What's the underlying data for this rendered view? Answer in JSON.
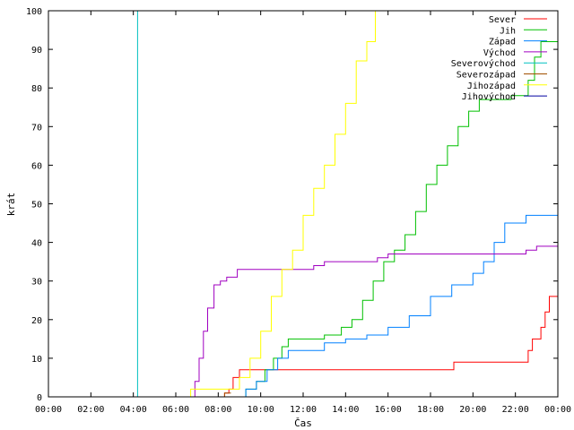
{
  "chart_data": {
    "type": "line",
    "title": "",
    "xlabel": "Čas",
    "ylabel": "krát",
    "xlim": [
      0,
      24
    ],
    "ylim": [
      0,
      100
    ],
    "grid": false,
    "legend_position": "top-right",
    "x_ticks": [
      {
        "value": 0,
        "label": "00:00"
      },
      {
        "value": 2,
        "label": "02:00"
      },
      {
        "value": 4,
        "label": "04:00"
      },
      {
        "value": 6,
        "label": "06:00"
      },
      {
        "value": 8,
        "label": "08:00"
      },
      {
        "value": 10,
        "label": "10:00"
      },
      {
        "value": 12,
        "label": "12:00"
      },
      {
        "value": 14,
        "label": "14:00"
      },
      {
        "value": 16,
        "label": "16:00"
      },
      {
        "value": 18,
        "label": "18:00"
      },
      {
        "value": 20,
        "label": "20:00"
      },
      {
        "value": 22,
        "label": "22:00"
      },
      {
        "value": 24,
        "label": "00:00"
      }
    ],
    "y_ticks": [
      0,
      10,
      20,
      30,
      40,
      50,
      60,
      70,
      80,
      90,
      100
    ],
    "series": [
      {
        "name": "Sever",
        "color": "#ff0000",
        "x": [
          0,
          8.1,
          8.3,
          8.5,
          8.7,
          9.0,
          10.5,
          13.0,
          16.0,
          19.0,
          19.1,
          20.0,
          22.5,
          22.6,
          22.8,
          23.0,
          23.2,
          23.4,
          23.6,
          23.8,
          24.0
        ],
        "y": [
          0,
          0,
          1,
          2,
          5,
          7,
          7,
          7,
          7,
          7,
          9,
          9,
          9,
          12,
          15,
          15,
          18,
          22,
          26,
          26,
          26
        ]
      },
      {
        "name": "Jih",
        "color": "#00c000",
        "x": [
          0,
          8.5,
          9.3,
          9.8,
          10.2,
          10.6,
          11.0,
          11.3,
          12.0,
          13.0,
          13.8,
          14.3,
          14.8,
          15.3,
          15.8,
          16.3,
          16.8,
          17.3,
          17.8,
          18.3,
          18.8,
          19.3,
          19.8,
          20.3,
          20.8,
          21.3,
          21.8,
          22.3,
          22.6,
          22.9,
          23.2,
          23.6,
          24.0
        ],
        "y": [
          0,
          0,
          2,
          4,
          7,
          10,
          13,
          15,
          15,
          16,
          18,
          20,
          25,
          30,
          35,
          38,
          42,
          48,
          55,
          60,
          65,
          70,
          74,
          77,
          77,
          77,
          78,
          78,
          82,
          88,
          92,
          92,
          92
        ]
      },
      {
        "name": "Západ",
        "color": "#0080ff",
        "x": [
          0,
          8.8,
          9.3,
          9.8,
          10.3,
          10.8,
          11.3,
          12.0,
          13.0,
          14.0,
          15.0,
          16.0,
          17.0,
          18.0,
          19.0,
          20.0,
          20.5,
          21.0,
          21.5,
          22.0,
          22.5,
          23.0,
          23.5,
          24.0
        ],
        "y": [
          0,
          0,
          2,
          4,
          7,
          10,
          12,
          12,
          14,
          15,
          16,
          18,
          21,
          26,
          29,
          32,
          35,
          40,
          45,
          45,
          47,
          47,
          47,
          51
        ]
      },
      {
        "name": "Východ",
        "color": "#a000c0",
        "x": [
          0,
          6.7,
          6.9,
          7.1,
          7.3,
          7.5,
          7.8,
          8.1,
          8.4,
          8.9,
          10.0,
          12.0,
          12.5,
          13.0,
          15.0,
          15.5,
          16.0,
          18.0,
          20.0,
          22.0,
          22.5,
          23.0,
          24.0
        ],
        "y": [
          0,
          0,
          4,
          10,
          17,
          23,
          29,
          30,
          31,
          33,
          33,
          33,
          34,
          35,
          35,
          36,
          37,
          37,
          37,
          37,
          38,
          39,
          39
        ]
      },
      {
        "name": "Severovýchod",
        "color": "#00c0c0",
        "x": [
          0,
          4.2
        ],
        "y": [
          0,
          100
        ]
      },
      {
        "name": "Severozápad",
        "color": "#a05000",
        "x": [
          0,
          8.0,
          8.3,
          8.6
        ],
        "y": [
          0,
          0,
          1,
          1
        ]
      },
      {
        "name": "Jihozápad",
        "color": "#ffff00",
        "x": [
          0,
          6.7,
          8.5,
          9.0,
          9.5,
          10.0,
          10.5,
          11.0,
          11.5,
          12.0,
          12.5,
          13.0,
          13.5,
          14.0,
          14.5,
          15.0,
          15.4
        ],
        "y": [
          0,
          2,
          2,
          5,
          10,
          17,
          26,
          33,
          38,
          47,
          54,
          60,
          68,
          76,
          87,
          92,
          100
        ]
      },
      {
        "name": "Jihovýchod",
        "color": "#0000a0",
        "x": [
          0,
          8.0,
          8.3
        ],
        "y": [
          0,
          0,
          0
        ]
      }
    ]
  }
}
